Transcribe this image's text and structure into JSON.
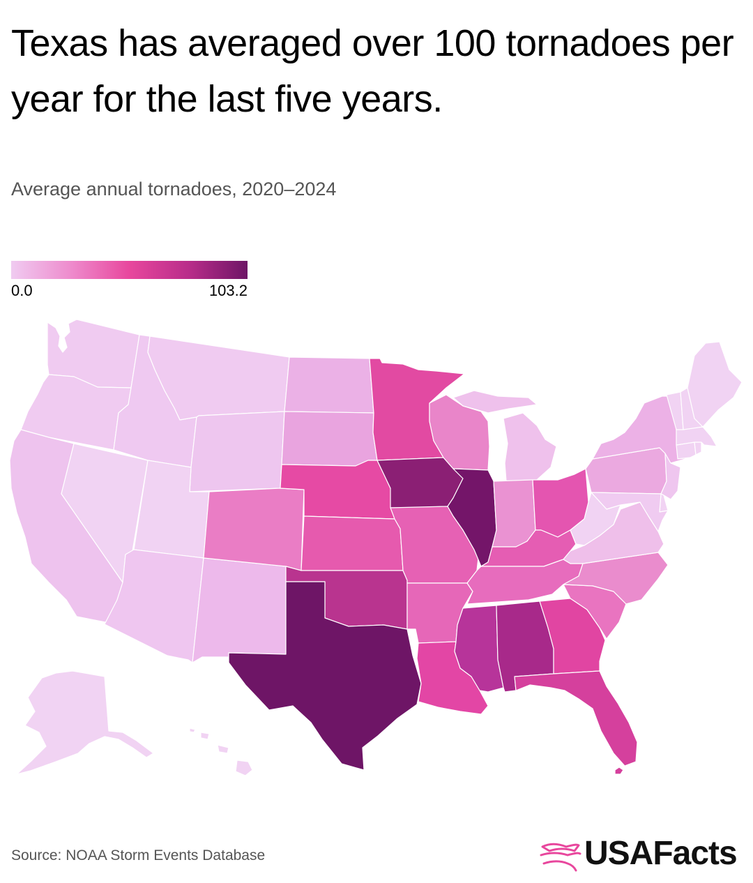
{
  "header": {
    "title": "Texas has averaged over 100 tornadoes per year for the last five years.",
    "subtitle": "Average annual tornadoes, 2020–2024"
  },
  "legend": {
    "min_label": "0.0",
    "max_label": "103.2",
    "colors": [
      "#f0cbf1",
      "#ee8ccd",
      "#e8479d",
      "#b92d8a",
      "#6e1566"
    ]
  },
  "footer": {
    "source": "Source: NOAA Storm Events Database",
    "brand": "USAFacts",
    "brand_color": "#e8479d"
  },
  "map_data": {
    "metric": "Average annual tornadoes, 2020–2024",
    "states": [
      {
        "state": "WA",
        "color": "#f0cbf1"
      },
      {
        "state": "OR",
        "color": "#f0cbf1"
      },
      {
        "state": "CA",
        "color": "#eec3ee"
      },
      {
        "state": "NV",
        "color": "#f1d3f3"
      },
      {
        "state": "ID",
        "color": "#efc9f1"
      },
      {
        "state": "MT",
        "color": "#f0cbf1"
      },
      {
        "state": "WY",
        "color": "#eec6ef"
      },
      {
        "state": "UT",
        "color": "#f1d3f3"
      },
      {
        "state": "AZ",
        "color": "#efc6f0"
      },
      {
        "state": "NM",
        "color": "#edb9eb"
      },
      {
        "state": "CO",
        "color": "#ea7dc5"
      },
      {
        "state": "ND",
        "color": "#ebb1e6"
      },
      {
        "state": "SD",
        "color": "#e9a4df"
      },
      {
        "state": "NE",
        "color": "#e64aa4"
      },
      {
        "state": "KS",
        "color": "#e65aae"
      },
      {
        "state": "OK",
        "color": "#b9348f"
      },
      {
        "state": "TX",
        "color": "#6e1566"
      },
      {
        "state": "MN",
        "color": "#e24aa2"
      },
      {
        "state": "IA",
        "color": "#8b1f74"
      },
      {
        "state": "MO",
        "color": "#e661b4"
      },
      {
        "state": "AR",
        "color": "#e667b8"
      },
      {
        "state": "LA",
        "color": "#e346a5"
      },
      {
        "state": "WI",
        "color": "#e985c9"
      },
      {
        "state": "IL",
        "color": "#741569"
      },
      {
        "state": "MI",
        "color": "#efc1ec"
      },
      {
        "state": "IN",
        "color": "#ea92d2"
      },
      {
        "state": "OH",
        "color": "#e455b0"
      },
      {
        "state": "KY",
        "color": "#e55db3"
      },
      {
        "state": "TN",
        "color": "#e76cbd"
      },
      {
        "state": "MS",
        "color": "#b7349a"
      },
      {
        "state": "AL",
        "color": "#a8298a"
      },
      {
        "state": "GA",
        "color": "#e145a2"
      },
      {
        "state": "FL",
        "color": "#d5409d"
      },
      {
        "state": "SC",
        "color": "#e974c0"
      },
      {
        "state": "NC",
        "color": "#ea8ccd"
      },
      {
        "state": "VA",
        "color": "#efbfea"
      },
      {
        "state": "WV",
        "color": "#f1d3f3"
      },
      {
        "state": "PA",
        "color": "#eba9e0"
      },
      {
        "state": "NY",
        "color": "#ecb1e6"
      },
      {
        "state": "NJ",
        "color": "#efc6ef"
      },
      {
        "state": "DE",
        "color": "#f1d3f3"
      },
      {
        "state": "MD",
        "color": "#f0cbf1"
      },
      {
        "state": "CT",
        "color": "#f1d3f3"
      },
      {
        "state": "RI",
        "color": "#f1d3f3"
      },
      {
        "state": "MA",
        "color": "#f1d3f3"
      },
      {
        "state": "VT",
        "color": "#f1d3f3"
      },
      {
        "state": "NH",
        "color": "#f1d3f3"
      },
      {
        "state": "ME",
        "color": "#f1d3f3"
      },
      {
        "state": "AK",
        "color": "#f1d3f3"
      },
      {
        "state": "HI",
        "color": "#f1d3f3"
      }
    ]
  }
}
